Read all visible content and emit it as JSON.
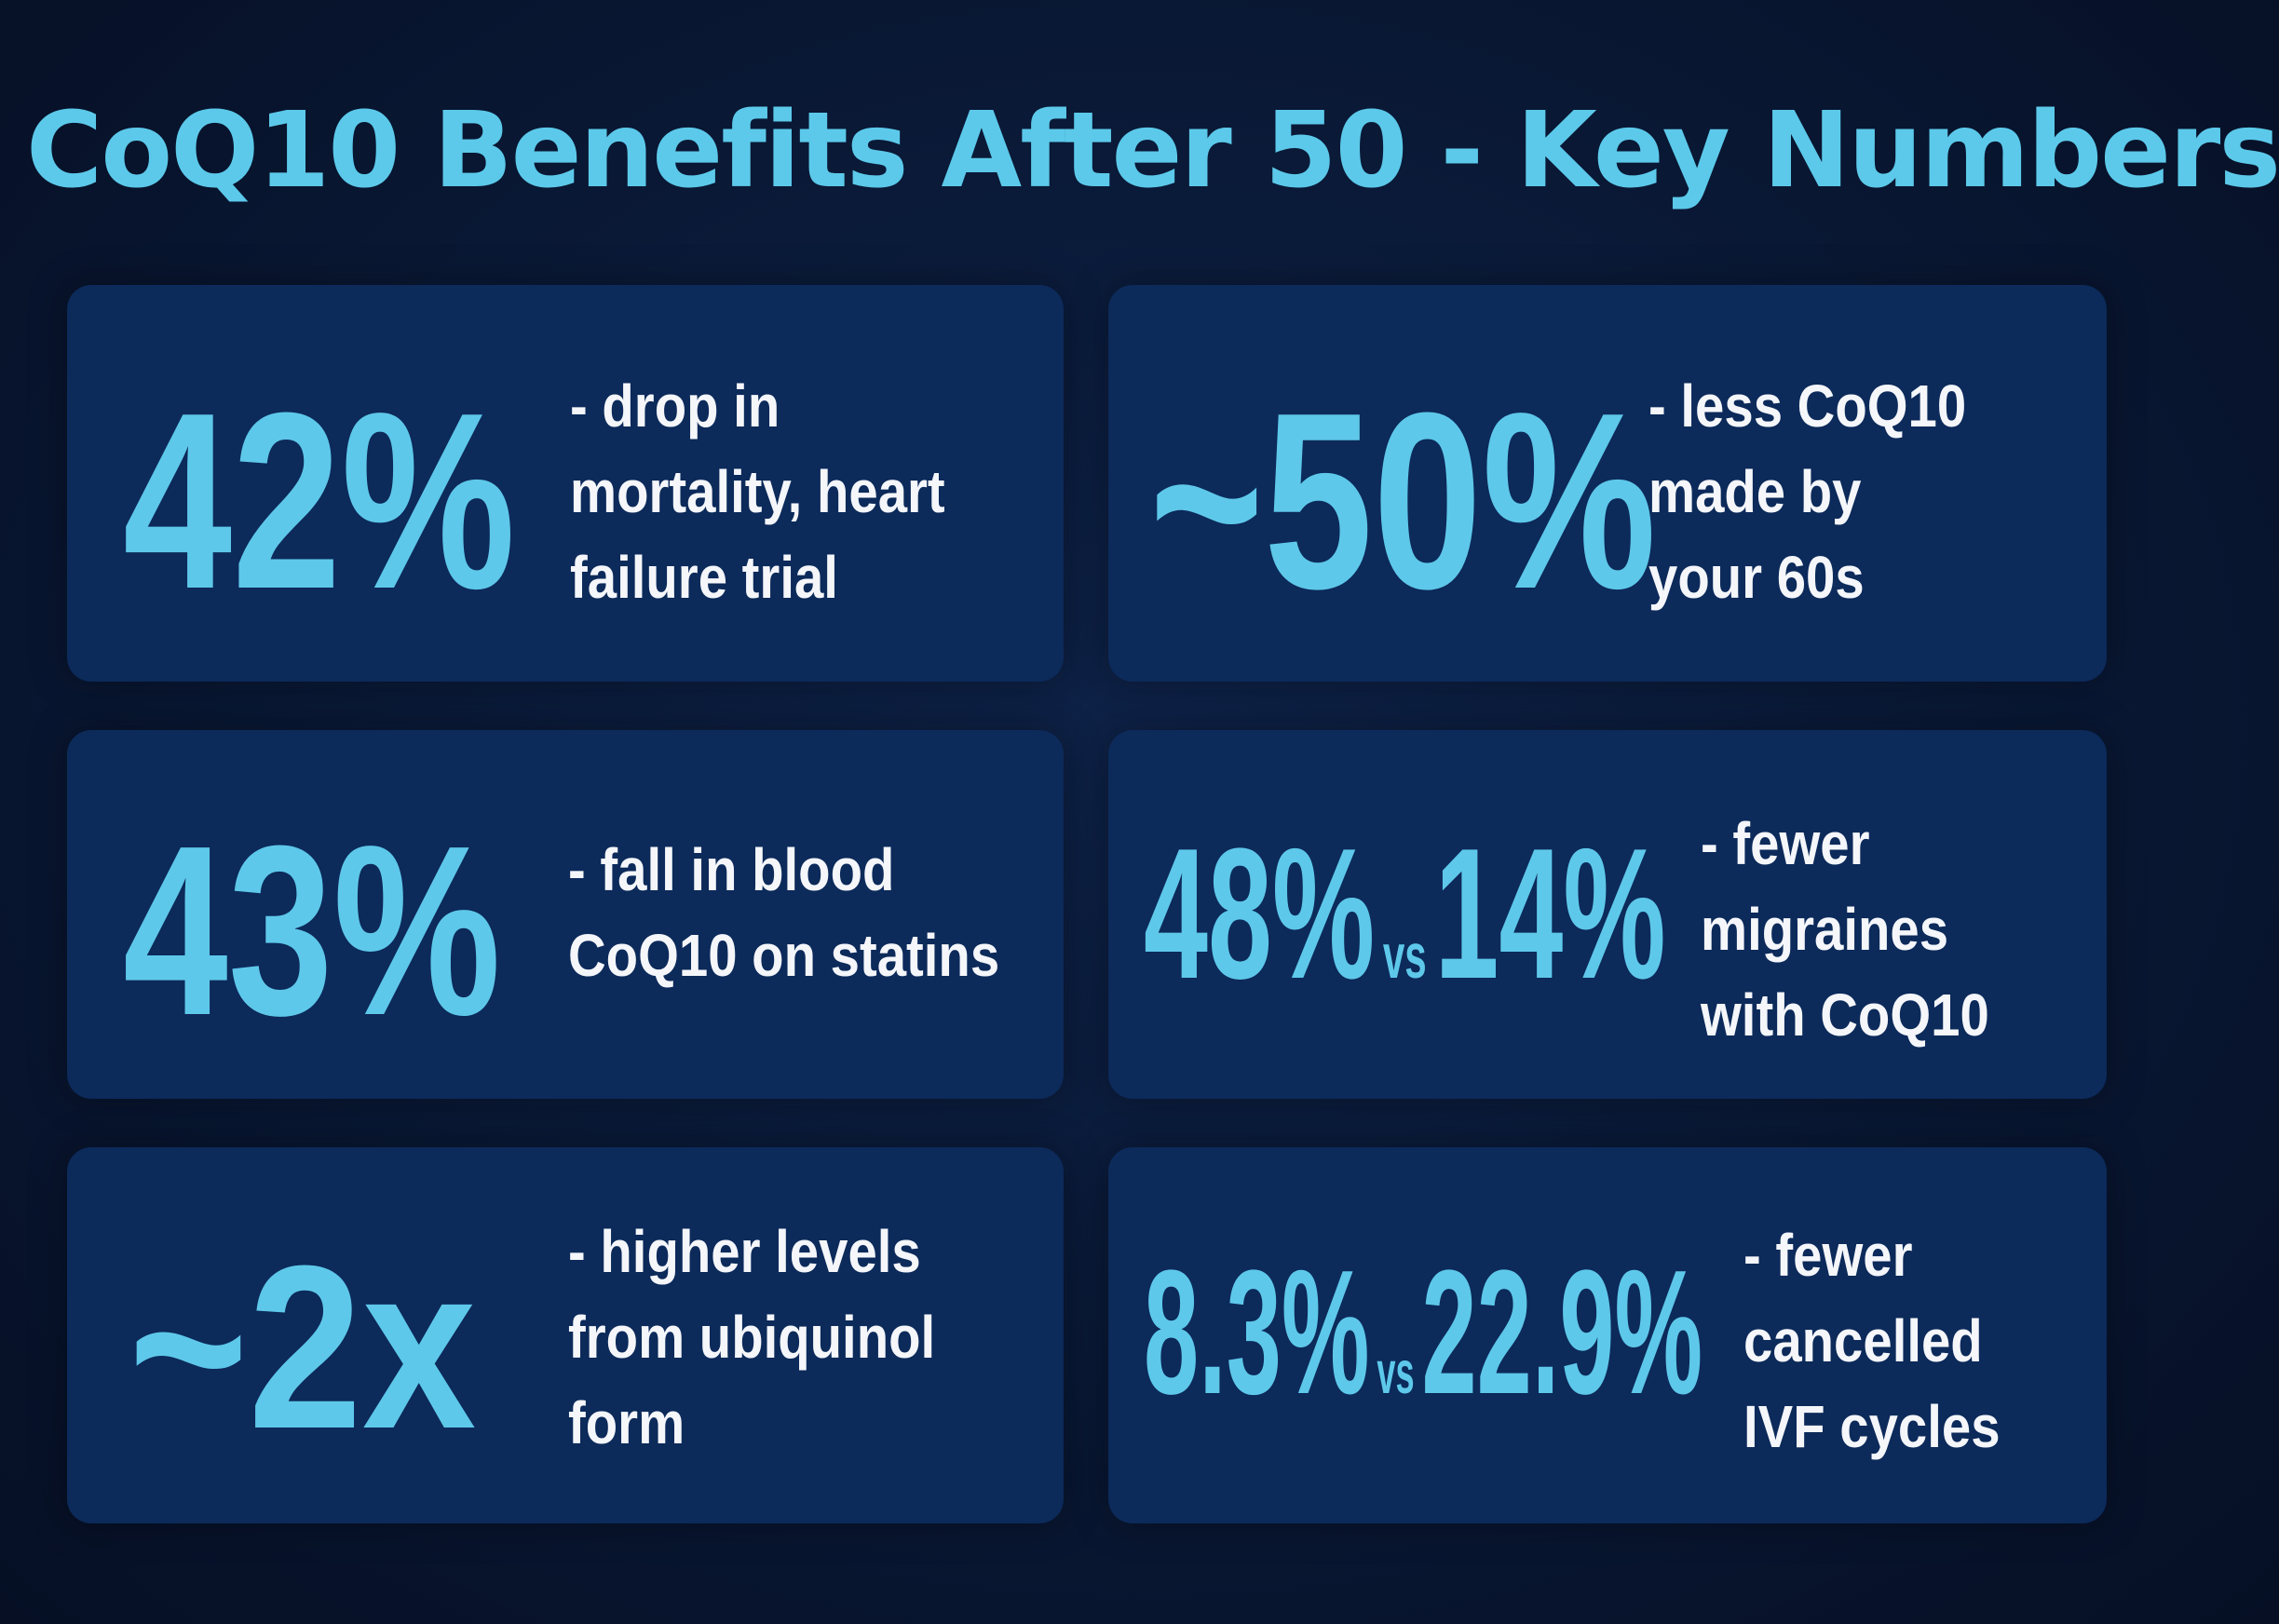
{
  "title": "CoQ10 Benefits After 50 - Key Numbers",
  "colors": {
    "background": "#0a1a38",
    "card": "#0c2a5a",
    "accent": "#5ec8ea",
    "text": "#f4f6fa"
  },
  "cards": [
    {
      "stat": "42%",
      "description": [
        "- drop in",
        "mortality, heart",
        "failure trial"
      ]
    },
    {
      "stat": "~50%",
      "description": [
        "- less CoQ10",
        "made by",
        "your 60s"
      ]
    },
    {
      "stat": "43%",
      "description": [
        "- fall in blood",
        "CoQ10 on statins"
      ]
    },
    {
      "stat_a": "48%",
      "vs": "vs",
      "stat_b": "14%",
      "description": [
        "- fewer",
        "migraines",
        "with CoQ10"
      ]
    },
    {
      "stat": "~2x",
      "description": [
        "- higher levels",
        "from ubiquinol",
        "form"
      ]
    },
    {
      "stat_a": "8.3%",
      "vs": "vs",
      "stat_b": "22.9%",
      "description": [
        "- fewer",
        "cancelled",
        "IVF cycles"
      ]
    }
  ]
}
